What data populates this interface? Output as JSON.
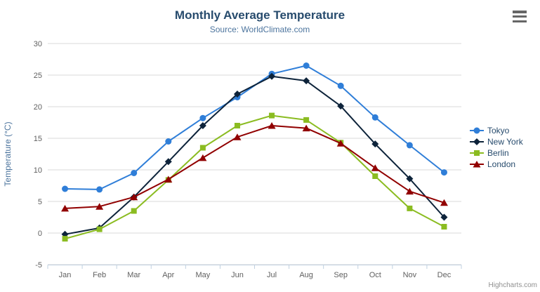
{
  "export_menu": {
    "icon": "hamburger-icon"
  },
  "credits": {
    "label": "Highcharts.com"
  },
  "chart_data": {
    "type": "line",
    "title": "Monthly Average Temperature",
    "subtitle": "Source: WorldClimate.com",
    "categories": [
      "Jan",
      "Feb",
      "Mar",
      "Apr",
      "May",
      "Jun",
      "Jul",
      "Aug",
      "Sep",
      "Oct",
      "Nov",
      "Dec"
    ],
    "series": [
      {
        "name": "Tokyo",
        "color": "#2f7ed8",
        "marker": "circle",
        "values": [
          7.0,
          6.9,
          9.5,
          14.5,
          18.2,
          21.5,
          25.2,
          26.5,
          23.3,
          18.3,
          13.9,
          9.6
        ]
      },
      {
        "name": "New York",
        "color": "#0d233a",
        "marker": "diamond",
        "values": [
          -0.2,
          0.8,
          5.7,
          11.3,
          17.0,
          22.0,
          24.8,
          24.1,
          20.1,
          14.1,
          8.6,
          2.5
        ]
      },
      {
        "name": "Berlin",
        "color": "#8bbc21",
        "marker": "square",
        "values": [
          -0.9,
          0.6,
          3.5,
          8.4,
          13.5,
          17.0,
          18.6,
          17.9,
          14.3,
          9.0,
          3.9,
          1.0
        ]
      },
      {
        "name": "London",
        "color": "#910000",
        "marker": "triangle",
        "values": [
          3.9,
          4.2,
          5.7,
          8.5,
          11.9,
          15.2,
          17.0,
          16.6,
          14.2,
          10.3,
          6.6,
          4.8
        ]
      }
    ],
    "xlabel": "",
    "ylabel": "Temperature (°C)",
    "ylim": [
      -5,
      30
    ],
    "yticks": [
      -5,
      0,
      5,
      10,
      15,
      20,
      25,
      30
    ],
    "grid": true,
    "legend_position": "right",
    "colors": {
      "title": "#274b6d",
      "subtitle": "#4d759e",
      "axis_title": "#4d759e",
      "tick_label": "#606060",
      "grid": "#d8d8d8",
      "axis_line": "#c0d0e0",
      "legend_text": "#274b6d",
      "credits": "#909090",
      "menu_icon": "#666666"
    }
  }
}
